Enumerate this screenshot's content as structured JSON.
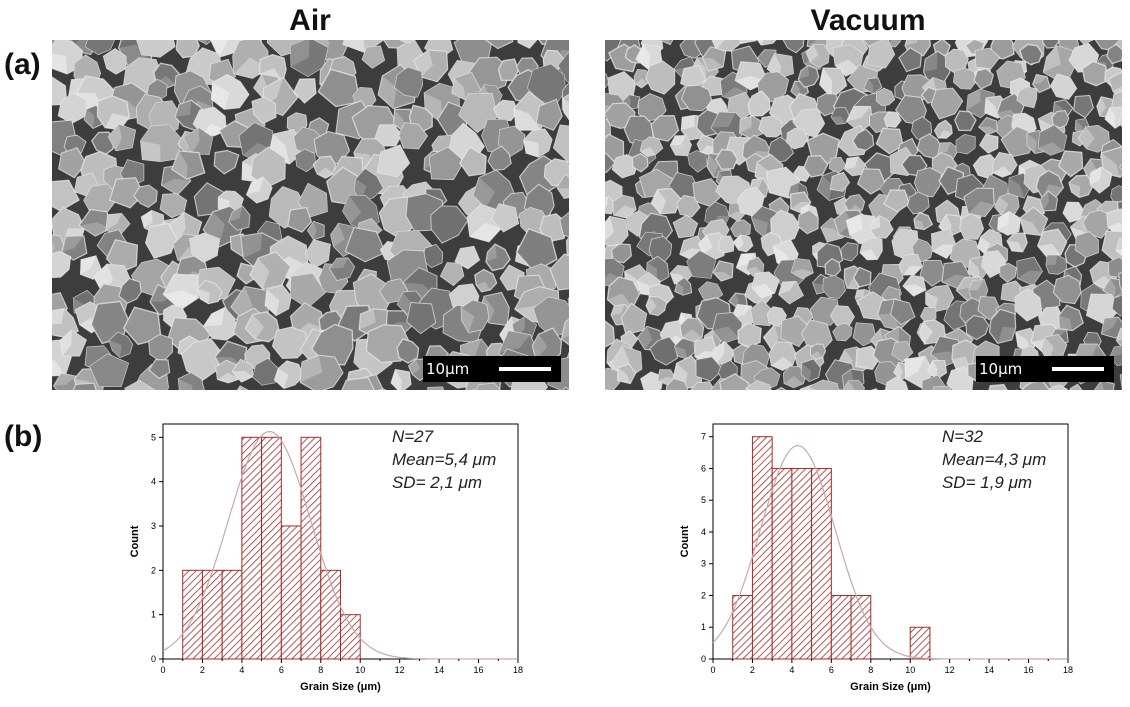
{
  "figure": {
    "panel_a": "(a)",
    "panel_b": "(b)",
    "titles": [
      "Air",
      "Vacuum"
    ],
    "scale_bar_label": "10μm"
  },
  "chart_data": [
    {
      "type": "bar",
      "title": "",
      "xlabel": "Grain Size (μm)",
      "ylabel": "Count",
      "xlim": [
        0,
        18
      ],
      "ylim": [
        0,
        5.3
      ],
      "xticks": [
        0,
        2,
        4,
        6,
        8,
        10,
        12,
        14,
        16,
        18
      ],
      "yticks": [
        0,
        1,
        2,
        3,
        4,
        5
      ],
      "bin_edges": [
        1,
        2,
        3,
        4,
        5,
        6,
        7,
        8,
        9,
        10
      ],
      "values": [
        2,
        2,
        2,
        5,
        5,
        3,
        5,
        2,
        1
      ],
      "fit": {
        "type": "normal",
        "mean": 5.4,
        "sd": 2.1,
        "n": 27
      },
      "annotations": [
        "N=27",
        "Mean=5,4 μm",
        "SD= 2,1 μm"
      ],
      "colors": {
        "bar_stroke": "#a52a2a",
        "fit_line": "#c9a8a8"
      }
    },
    {
      "type": "bar",
      "title": "",
      "xlabel": "Grain Size (μm)",
      "ylabel": "Count",
      "xlim": [
        0,
        18
      ],
      "ylim": [
        0,
        7.4
      ],
      "xticks": [
        0,
        2,
        4,
        6,
        8,
        10,
        12,
        14,
        16,
        18
      ],
      "yticks": [
        0,
        1,
        2,
        3,
        4,
        5,
        6,
        7
      ],
      "bin_edges": [
        1,
        2,
        3,
        4,
        5,
        6,
        7,
        8,
        9,
        10,
        11
      ],
      "values": [
        2,
        7,
        6,
        6,
        6,
        2,
        2,
        0,
        0,
        1
      ],
      "fit": {
        "type": "normal",
        "mean": 4.3,
        "sd": 1.9,
        "n": 32
      },
      "annotations": [
        "N=32",
        "Mean=4,3 μm",
        "SD= 1,9 μm"
      ],
      "colors": {
        "bar_stroke": "#a52a2a",
        "fit_line": "#c9a8a8"
      }
    }
  ]
}
